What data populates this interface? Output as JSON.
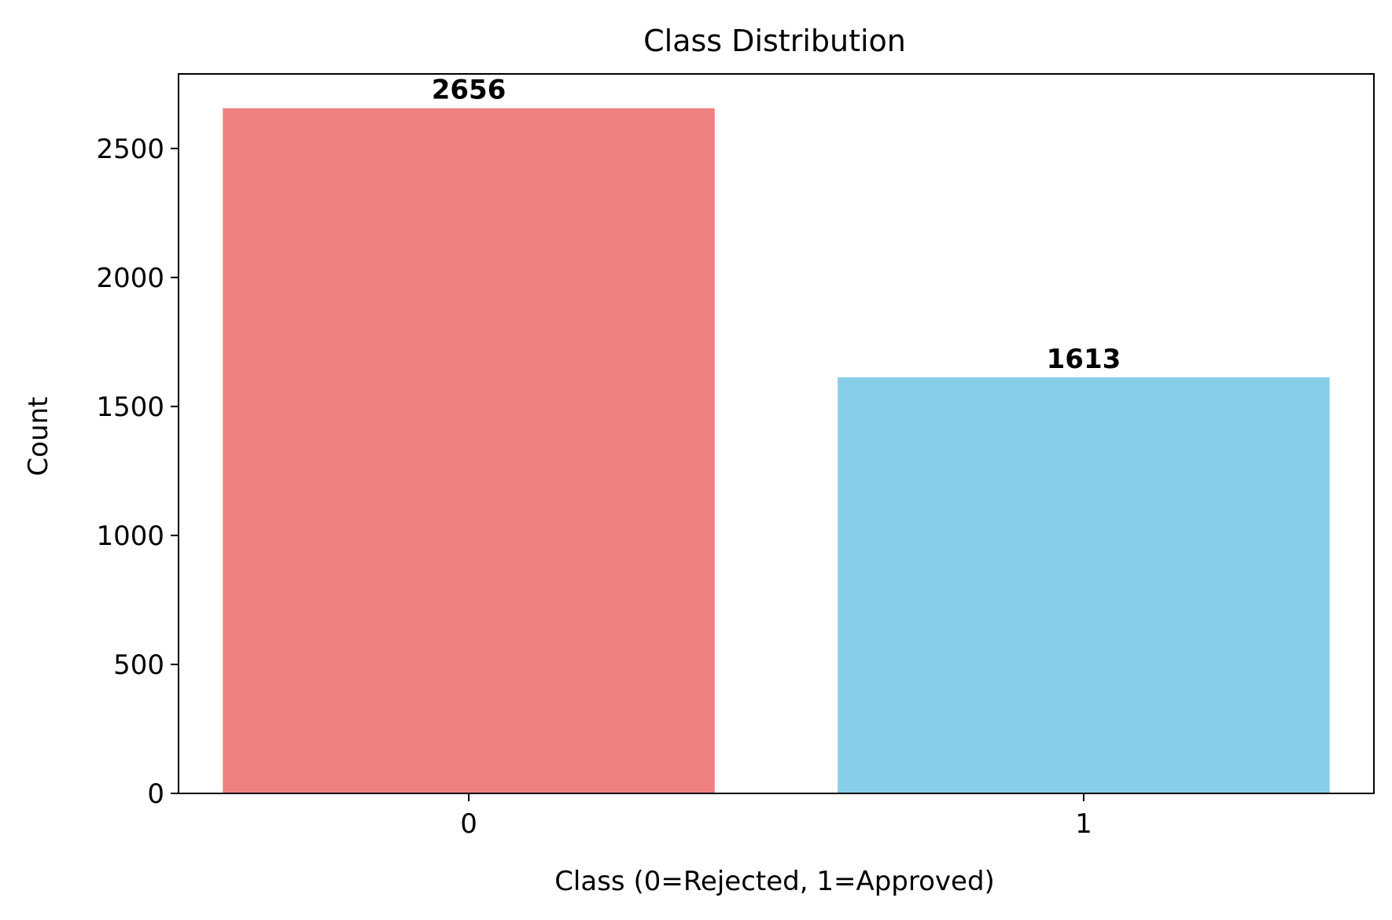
{
  "chart_data": {
    "type": "bar",
    "title": "Class Distribution",
    "xlabel": "Class (0=Rejected, 1=Approved)",
    "ylabel": "Count",
    "categories": [
      "0",
      "1"
    ],
    "values": [
      2656,
      1613
    ],
    "value_labels": [
      "2656",
      "1613"
    ],
    "bar_colors": [
      "#f08080",
      "#87ceeb"
    ],
    "ylim": [
      0,
      2789
    ],
    "yticks": [
      0,
      500,
      1000,
      1500,
      2000,
      2500
    ],
    "ytick_labels": [
      "0",
      "500",
      "1000",
      "1500",
      "2000",
      "2500"
    ],
    "grid": false,
    "legend": false
  }
}
